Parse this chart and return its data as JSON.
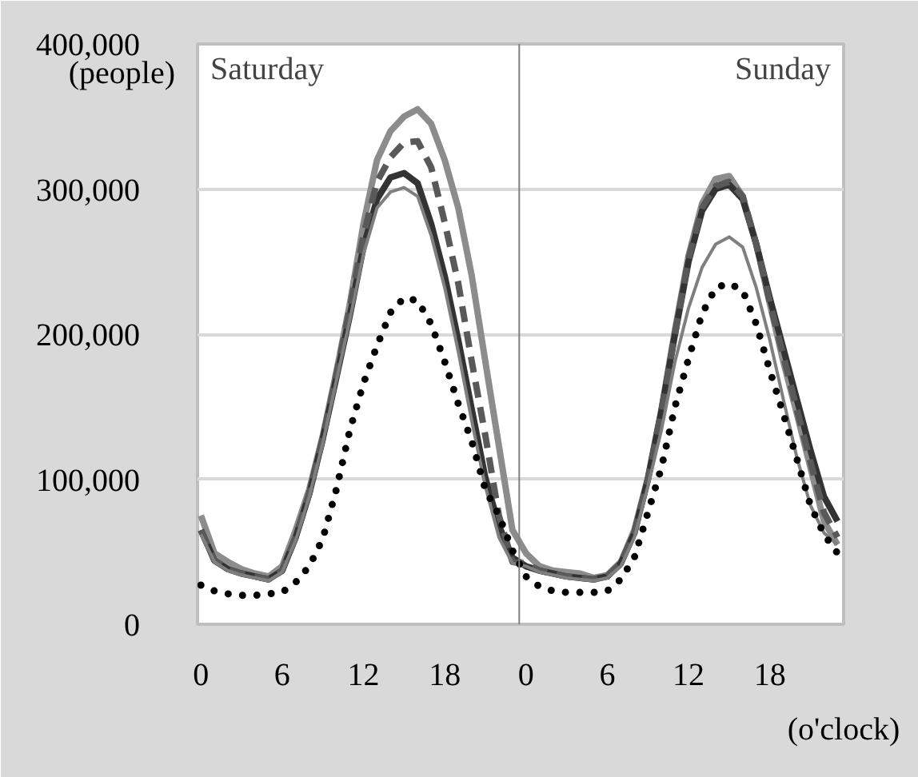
{
  "chart_data": {
    "type": "line",
    "annotations": [
      "Saturday",
      "Sunday"
    ],
    "ylabel": "(people)",
    "xlabel": "(o'clock)",
    "categories": [
      "0",
      null,
      null,
      null,
      null,
      null,
      "6",
      null,
      null,
      null,
      null,
      null,
      "12",
      null,
      null,
      null,
      null,
      null,
      "18",
      null,
      null,
      null,
      null,
      null,
      "0",
      null,
      null,
      null,
      null,
      null,
      "6",
      null,
      null,
      null,
      null,
      null,
      "12",
      null,
      null,
      null,
      null,
      null,
      "18",
      null,
      null,
      null,
      null,
      null
    ],
    "ylim": [
      0,
      400000
    ],
    "yticks": [
      0,
      {
        "value": 100000,
        "label": "100,000"
      },
      {
        "value": 200000,
        "label": "200,000"
      },
      {
        "value": 300000,
        "label": "300,000"
      },
      {
        "value": 400000,
        "label": "400,000"
      }
    ],
    "grid": "y",
    "series": [
      {
        "color": "#8c8c8c",
        "line_style": "solid",
        "values": [
          75000,
          49000,
          43000,
          38000,
          35000,
          33000,
          40000,
          65000,
          93000,
          130000,
          174000,
          221000,
          276000,
          320000,
          340000,
          350000,
          355000,
          345000,
          320000,
          287000,
          240000,
          181000,
          123000,
          65000,
          49000,
          40000,
          37000,
          36000,
          35000,
          32000,
          34000,
          43000,
          65000,
          101000,
          148000,
          203000,
          254000,
          290000,
          307000,
          309000,
          295000,
          262000,
          221000,
          181000,
          145000,
          108000,
          71000,
          55000
        ]
      },
      {
        "color": "#333333",
        "line_style": "solid",
        "values": [
          65000,
          44000,
          38000,
          35000,
          33000,
          31000,
          37000,
          60000,
          90000,
          128000,
          170000,
          213000,
          260000,
          293000,
          308000,
          311000,
          304000,
          276000,
          240000,
          196000,
          148000,
          101000,
          68000,
          46000,
          40000,
          37000,
          35000,
          33000,
          32000,
          31000,
          33000,
          42000,
          63000,
          100000,
          147000,
          200000,
          250000,
          285000,
          300000,
          303000,
          293000,
          262000,
          225000,
          190000,
          155000,
          120000,
          88000,
          71000
        ]
      },
      {
        "color": "#595959",
        "line_style": "dashed",
        "values": [
          65000,
          44000,
          38000,
          35000,
          33000,
          31000,
          37000,
          60000,
          90000,
          128000,
          172000,
          218000,
          268000,
          305000,
          322000,
          332000,
          333000,
          315000,
          277000,
          235000,
          181000,
          130000,
          75000,
          43000,
          42000,
          37000,
          35000,
          33000,
          32000,
          31000,
          33000,
          42000,
          63000,
          100000,
          147000,
          200000,
          252000,
          287000,
          302000,
          305000,
          295000,
          262000,
          222000,
          185000,
          148000,
          112000,
          77000,
          60000
        ]
      },
      {
        "color": "#7f7f7f",
        "line_style": "solid",
        "values": [
          62000,
          43000,
          37000,
          34000,
          32000,
          30000,
          36000,
          58000,
          88000,
          125000,
          168000,
          210000,
          255000,
          287000,
          298000,
          301000,
          295000,
          268000,
          232000,
          188000,
          140000,
          95000,
          60000,
          42000,
          40000,
          36000,
          34000,
          32000,
          31000,
          30000,
          32000,
          40000,
          60000,
          95000,
          134000,
          181000,
          218000,
          246000,
          262000,
          267000,
          260000,
          232000,
          196000,
          155000,
          115000,
          82000,
          63000,
          55000
        ]
      },
      {
        "color": "#000000",
        "line_style": "dotted",
        "values": [
          27000,
          23000,
          21000,
          20000,
          20000,
          21000,
          22000,
          29000,
          40000,
          59000,
          93000,
          134000,
          166000,
          192000,
          215000,
          225000,
          223000,
          207000,
          181000,
          152000,
          126000,
          93000,
          75000,
          51000,
          33000,
          26000,
          23000,
          22000,
          22000,
          22000,
          23000,
          31000,
          46000,
          77000,
          108000,
          150000,
          183000,
          214000,
          232000,
          235000,
          230000,
          207000,
          175000,
          145000,
          114000,
          82000,
          62000,
          49000
        ]
      }
    ]
  }
}
